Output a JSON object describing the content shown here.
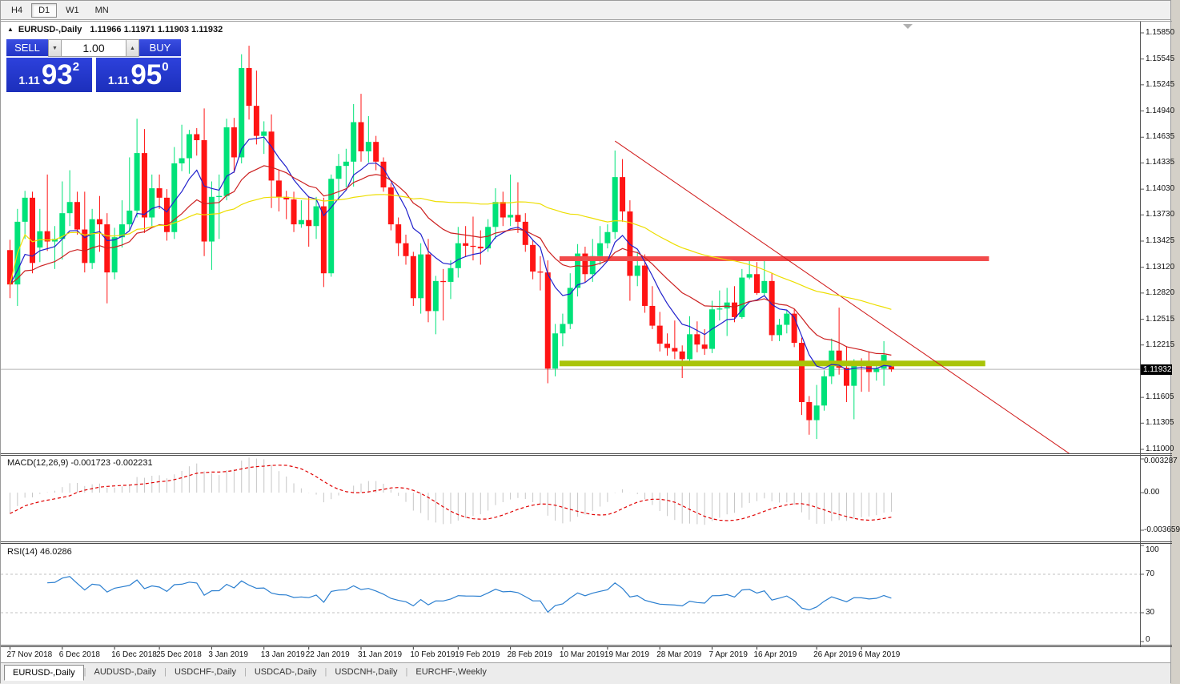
{
  "toolbar": {
    "buttons": [
      {
        "label": "H4",
        "active": false
      },
      {
        "label": "D1",
        "active": true
      },
      {
        "label": "W1",
        "active": false
      },
      {
        "label": "MN",
        "active": false
      }
    ]
  },
  "trade_panel": {
    "sell_label": "SELL",
    "buy_label": "BUY",
    "volume_value": "1.00",
    "sell_price": {
      "small": "1.11",
      "big": "93",
      "sup": "2"
    },
    "buy_price": {
      "small": "1.11",
      "big": "95",
      "sup": "0"
    }
  },
  "tabs": {
    "items": [
      {
        "label": "EURUSD-,Daily",
        "active": true
      },
      {
        "label": "AUDUSD-,Daily",
        "active": false
      },
      {
        "label": "USDCHF-,Daily",
        "active": false
      },
      {
        "label": "USDCAD-,Daily",
        "active": false
      },
      {
        "label": "USDCNH-,Daily",
        "active": false
      },
      {
        "label": "EURCHF-,Weekly",
        "active": false
      }
    ]
  },
  "chart_data": {
    "type": "candlestick",
    "symbol": "EURUSD-,Daily",
    "title_ohlc_text": "1.11966 1.11971 1.11903 1.11932",
    "ylim": [
      1.11,
      1.1585
    ],
    "price_ticks": [
      "1.15850",
      "1.15545",
      "1.15245",
      "1.14940",
      "1.14635",
      "1.14335",
      "1.14030",
      "1.13730",
      "1.13425",
      "1.13120",
      "1.12820",
      "1.12515",
      "1.12215",
      "1.11605",
      "1.11305",
      "1.11000"
    ],
    "current_price": 1.11932,
    "current_price_badge": "1.11932",
    "up_color": "#00E279",
    "down_color": "#FF1414",
    "candles": [
      [
        1.1332,
        1.1344,
        1.1276,
        1.1292
      ],
      [
        1.1292,
        1.138,
        1.1267,
        1.1365
      ],
      [
        1.1365,
        1.1401,
        1.1345,
        1.1393
      ],
      [
        1.1393,
        1.14,
        1.1305,
        1.1317
      ],
      [
        1.1335,
        1.138,
        1.1318,
        1.1354
      ],
      [
        1.1354,
        1.142,
        1.1331,
        1.1342
      ],
      [
        1.1342,
        1.136,
        1.131,
        1.1345
      ],
      [
        1.1345,
        1.1412,
        1.1321,
        1.1375
      ],
      [
        1.1375,
        1.1425,
        1.136,
        1.1388
      ],
      [
        1.1388,
        1.14,
        1.135,
        1.1356
      ],
      [
        1.1356,
        1.14,
        1.1306,
        1.1317
      ],
      [
        1.1317,
        1.138,
        1.131,
        1.1368
      ],
      [
        1.1368,
        1.1395,
        1.133,
        1.1362
      ],
      [
        1.1362,
        1.1375,
        1.127,
        1.1306
      ],
      [
        1.1306,
        1.1358,
        1.1298,
        1.1347
      ],
      [
        1.1347,
        1.139,
        1.1335,
        1.1362
      ],
      [
        1.1362,
        1.144,
        1.1355,
        1.1378
      ],
      [
        1.1378,
        1.1485,
        1.137,
        1.1445
      ],
      [
        1.1445,
        1.1473,
        1.1352,
        1.137
      ],
      [
        1.137,
        1.142,
        1.136,
        1.1404
      ],
      [
        1.1404,
        1.142,
        1.138,
        1.1393
      ],
      [
        1.1393,
        1.1403,
        1.1343,
        1.1353
      ],
      [
        1.1353,
        1.1452,
        1.1345,
        1.1433
      ],
      [
        1.1433,
        1.1478,
        1.1424,
        1.1439
      ],
      [
        1.1439,
        1.1472,
        1.1421,
        1.1467
      ],
      [
        1.1467,
        1.1474,
        1.1442,
        1.146
      ],
      [
        1.146,
        1.1497,
        1.1325,
        1.1342
      ],
      [
        1.1342,
        1.1412,
        1.1309,
        1.1394
      ],
      [
        1.1394,
        1.142,
        1.1345,
        1.1395
      ],
      [
        1.1395,
        1.1485,
        1.139,
        1.1475
      ],
      [
        1.1475,
        1.1486,
        1.1422,
        1.144
      ],
      [
        1.144,
        1.156,
        1.1433,
        1.1544
      ],
      [
        1.1544,
        1.157,
        1.1484,
        1.15
      ],
      [
        1.15,
        1.1541,
        1.1455,
        1.1465
      ],
      [
        1.1465,
        1.1482,
        1.1444,
        1.147
      ],
      [
        1.147,
        1.149,
        1.1381,
        1.1413
      ],
      [
        1.1413,
        1.1426,
        1.1377,
        1.1394
      ],
      [
        1.1394,
        1.1401,
        1.1368,
        1.1391
      ],
      [
        1.1391,
        1.14,
        1.1353,
        1.1362
      ],
      [
        1.1362,
        1.139,
        1.1358,
        1.1367
      ],
      [
        1.1367,
        1.1395,
        1.1336,
        1.136
      ],
      [
        1.136,
        1.1394,
        1.1345,
        1.1383
      ],
      [
        1.1383,
        1.1393,
        1.1289,
        1.1305
      ],
      [
        1.1305,
        1.142,
        1.1301,
        1.1415
      ],
      [
        1.1415,
        1.1444,
        1.139,
        1.143
      ],
      [
        1.143,
        1.145,
        1.1405,
        1.1435
      ],
      [
        1.1435,
        1.1502,
        1.1406,
        1.1481
      ],
      [
        1.1481,
        1.1514,
        1.1435,
        1.1447
      ],
      [
        1.1447,
        1.1488,
        1.1434,
        1.1458
      ],
      [
        1.1458,
        1.1465,
        1.1425,
        1.1435
      ],
      [
        1.1435,
        1.144,
        1.14,
        1.1405
      ],
      [
        1.1405,
        1.141,
        1.1355,
        1.1362
      ],
      [
        1.1362,
        1.137,
        1.1325,
        1.134
      ],
      [
        1.134,
        1.135,
        1.1315,
        1.1325
      ],
      [
        1.1325,
        1.133,
        1.1267,
        1.1276
      ],
      [
        1.1276,
        1.134,
        1.1258,
        1.1327
      ],
      [
        1.1327,
        1.1345,
        1.1248,
        1.1261
      ],
      [
        1.1261,
        1.1302,
        1.1234,
        1.1296
      ],
      [
        1.1296,
        1.131,
        1.125,
        1.1295
      ],
      [
        1.1295,
        1.132,
        1.1275,
        1.1311
      ],
      [
        1.1311,
        1.1359,
        1.13,
        1.134
      ],
      [
        1.134,
        1.136,
        1.1324,
        1.1337
      ],
      [
        1.1337,
        1.1371,
        1.132,
        1.1336
      ],
      [
        1.1336,
        1.1355,
        1.1315,
        1.1334
      ],
      [
        1.1334,
        1.1368,
        1.133,
        1.1359
      ],
      [
        1.1359,
        1.1404,
        1.1345,
        1.1388
      ],
      [
        1.1388,
        1.14,
        1.136,
        1.137
      ],
      [
        1.137,
        1.142,
        1.136,
        1.1373
      ],
      [
        1.1373,
        1.1411,
        1.1352,
        1.1365
      ],
      [
        1.1365,
        1.1375,
        1.133,
        1.1338
      ],
      [
        1.1338,
        1.1344,
        1.1298,
        1.1307
      ],
      [
        1.1307,
        1.1325,
        1.1285,
        1.1306
      ],
      [
        1.1306,
        1.132,
        1.1177,
        1.1194
      ],
      [
        1.1194,
        1.1246,
        1.1185,
        1.1235
      ],
      [
        1.1235,
        1.1258,
        1.122,
        1.1246
      ],
      [
        1.1246,
        1.1305,
        1.124,
        1.1288
      ],
      [
        1.1288,
        1.1339,
        1.1278,
        1.1328
      ],
      [
        1.1328,
        1.1336,
        1.1294,
        1.1304
      ],
      [
        1.1304,
        1.1345,
        1.1295,
        1.1325
      ],
      [
        1.1325,
        1.136,
        1.1315,
        1.134
      ],
      [
        1.134,
        1.1362,
        1.1334,
        1.1353
      ],
      [
        1.1353,
        1.1448,
        1.1345,
        1.1417
      ],
      [
        1.1417,
        1.1438,
        1.1365,
        1.1377
      ],
      [
        1.1377,
        1.139,
        1.1273,
        1.1302
      ],
      [
        1.1302,
        1.133,
        1.129,
        1.1314
      ],
      [
        1.1314,
        1.1327,
        1.1259,
        1.1267
      ],
      [
        1.1267,
        1.129,
        1.124,
        1.1244
      ],
      [
        1.1244,
        1.126,
        1.1214,
        1.1223
      ],
      [
        1.1223,
        1.1235,
        1.1209,
        1.1218
      ],
      [
        1.1218,
        1.125,
        1.1205,
        1.1214
      ],
      [
        1.1214,
        1.1221,
        1.1183,
        1.1205
      ],
      [
        1.1205,
        1.1255,
        1.12,
        1.1234
      ],
      [
        1.1234,
        1.1249,
        1.1213,
        1.1222
      ],
      [
        1.1222,
        1.124,
        1.121,
        1.1217
      ],
      [
        1.1217,
        1.1273,
        1.1212,
        1.1263
      ],
      [
        1.1263,
        1.1285,
        1.125,
        1.1264
      ],
      [
        1.1264,
        1.1288,
        1.1232,
        1.1271
      ],
      [
        1.1271,
        1.129,
        1.1248,
        1.1254
      ],
      [
        1.1254,
        1.131,
        1.1252,
        1.13
      ],
      [
        1.13,
        1.132,
        1.1298,
        1.1304
      ],
      [
        1.1304,
        1.1318,
        1.128,
        1.1282
      ],
      [
        1.1282,
        1.1324,
        1.1279,
        1.1296
      ],
      [
        1.1296,
        1.1305,
        1.1226,
        1.1233
      ],
      [
        1.1233,
        1.1252,
        1.1226,
        1.1245
      ],
      [
        1.1245,
        1.1262,
        1.1235,
        1.1258
      ],
      [
        1.1258,
        1.1263,
        1.1219,
        1.1224
      ],
      [
        1.1224,
        1.123,
        1.114,
        1.1155
      ],
      [
        1.1155,
        1.1162,
        1.1117,
        1.1134
      ],
      [
        1.1134,
        1.1175,
        1.1112,
        1.1151
      ],
      [
        1.1151,
        1.1192,
        1.1145,
        1.1185
      ],
      [
        1.1185,
        1.1229,
        1.1176,
        1.1215
      ],
      [
        1.1215,
        1.1265,
        1.1187,
        1.1195
      ],
      [
        1.1195,
        1.122,
        1.1155,
        1.1174
      ],
      [
        1.1174,
        1.1205,
        1.1135,
        1.12
      ],
      [
        1.12,
        1.1206,
        1.1167,
        1.1199
      ],
      [
        1.1199,
        1.1214,
        1.1167,
        1.119
      ],
      [
        1.119,
        1.1202,
        1.118,
        1.1194
      ],
      [
        1.1194,
        1.1226,
        1.1174,
        1.121
      ],
      [
        1.11966,
        1.11971,
        1.11903,
        1.11932
      ]
    ],
    "date_labels": [
      {
        "label": "27 Nov 2018",
        "index": 0
      },
      {
        "label": "6 Dec 2018",
        "index": 7
      },
      {
        "label": "16 Dec 2018",
        "index": 14
      },
      {
        "label": "25 Dec 2018",
        "index": 20
      },
      {
        "label": "3 Jan 2019",
        "index": 27
      },
      {
        "label": "13 Jan 2019",
        "index": 34
      },
      {
        "label": "22 Jan 2019",
        "index": 40
      },
      {
        "label": "31 Jan 2019",
        "index": 47
      },
      {
        "label": "10 Feb 2019",
        "index": 54
      },
      {
        "label": "19 Feb 2019",
        "index": 60
      },
      {
        "label": "28 Feb 2019",
        "index": 67
      },
      {
        "label": "10 Mar 2019",
        "index": 74
      },
      {
        "label": "19 Mar 2019",
        "index": 80
      },
      {
        "label": "28 Mar 2019",
        "index": 87
      },
      {
        "label": "7 Apr 2019",
        "index": 94
      },
      {
        "label": "16 Apr 2019",
        "index": 100
      },
      {
        "label": "26 Apr 2019",
        "index": 108
      },
      {
        "label": "6 May 2019",
        "index": 114
      }
    ],
    "moving_averages": [
      {
        "name": "fast",
        "type": "ema",
        "period": 8,
        "color": "#2121CC"
      },
      {
        "name": "medium",
        "type": "ema",
        "period": 20,
        "color": "#CC2121"
      },
      {
        "name": "slow",
        "type": "sma",
        "period": 55,
        "color": "#EDDE00"
      }
    ],
    "objects": {
      "resistance_line": {
        "price": 1.1322,
        "i1": 74,
        "i2": 131.5,
        "color": "#F24B4B",
        "thickness": 6
      },
      "support_line": {
        "price": 1.12,
        "i1": 74,
        "i2": 131.0,
        "color": "#A9C408",
        "thickness": 7
      },
      "trendline": {
        "i1": 81,
        "p1": 1.1459,
        "i2": 142,
        "p2": 1.1094,
        "color": "#D01818",
        "thickness": 1
      }
    },
    "macd": {
      "label": "MACD(12,26,9) -0.001723 -0.002231",
      "fast": 12,
      "slow": 26,
      "signal": 9,
      "main_value": -0.001723,
      "signal_value": -0.002231,
      "axis_ticks": [
        {
          "text": "0.003287",
          "value": 0.003287
        },
        {
          "text": "0.00",
          "value": 0
        },
        {
          "text": "-0.003659",
          "value": -0.003659
        }
      ],
      "histogram_color": "#C6C6C6",
      "signal_color": "#E00000"
    },
    "rsi": {
      "label": "RSI(14) 46.0286",
      "period": 14,
      "last_value": 46.0286,
      "levels": [
        70,
        30
      ],
      "axis_ticks": [
        {
          "text": "100",
          "value": 100
        },
        {
          "text": "70",
          "value": 70
        },
        {
          "text": "30",
          "value": 30
        },
        {
          "text": "0",
          "value": 0
        }
      ],
      "color": "#2B7FD0",
      "ylim": [
        0,
        100
      ]
    }
  }
}
